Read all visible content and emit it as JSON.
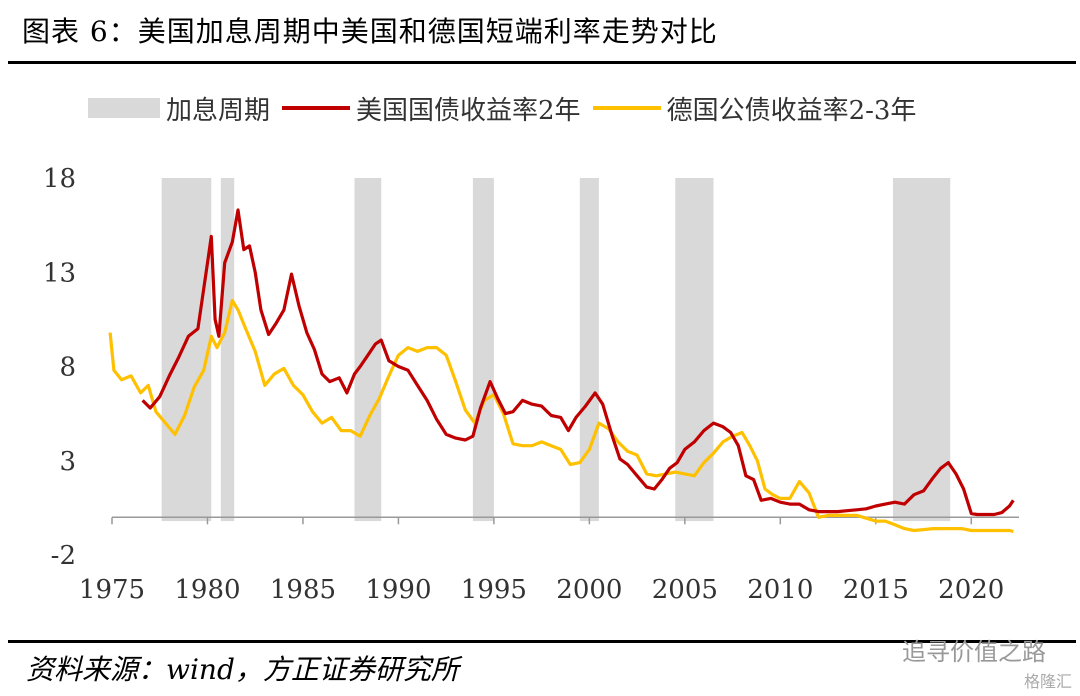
{
  "title": "图表 6：美国加息周期中美国和德国短端利率走势对比",
  "source": "资料来源：wind，方正证券研究所",
  "watermark": "追寻价值之路",
  "watermark2": "格隆汇",
  "colors": {
    "band": "#d9d9d9",
    "us": "#c00000",
    "de": "#ffc000",
    "axis": "#999999"
  },
  "chart_data": {
    "type": "line",
    "legend_position": "top",
    "ylim": [
      -2,
      18
    ],
    "yticks": [
      "18",
      "13",
      "8",
      "3",
      "-2"
    ],
    "ytick_values": [
      18,
      13,
      8,
      3,
      -2
    ],
    "xlim": [
      1975,
      2022.5
    ],
    "xticks": [
      "1975",
      "1980",
      "1985",
      "1990",
      "1995",
      "2000",
      "2005",
      "2010",
      "2015",
      "2020"
    ],
    "xtick_values": [
      1975,
      1980,
      1985,
      1990,
      1995,
      2000,
      2005,
      2010,
      2015,
      2020
    ],
    "bands_name": "加息周期",
    "bands": [
      [
        1977.6,
        1980.2
      ],
      [
        1980.7,
        1981.4
      ],
      [
        1987.7,
        1989.1
      ],
      [
        1993.9,
        1995.0
      ],
      [
        1999.5,
        2000.5
      ],
      [
        2004.5,
        2006.5
      ],
      [
        2015.9,
        2018.9
      ]
    ],
    "series": [
      {
        "name": "美国国债收益率2年",
        "x": [
          1976.6,
          1977.0,
          1977.5,
          1978.0,
          1978.5,
          1979.0,
          1979.5,
          1980.0,
          1980.2,
          1980.4,
          1980.6,
          1980.9,
          1981.3,
          1981.6,
          1981.9,
          1982.2,
          1982.5,
          1982.8,
          1983.2,
          1983.6,
          1984.0,
          1984.4,
          1984.8,
          1985.2,
          1985.6,
          1986.0,
          1986.4,
          1986.9,
          1987.3,
          1987.7,
          1988.0,
          1988.4,
          1988.8,
          1989.1,
          1989.5,
          1990.0,
          1990.5,
          1991.0,
          1991.5,
          1992.0,
          1992.5,
          1993.0,
          1993.5,
          1993.9,
          1994.3,
          1994.8,
          1995.2,
          1995.6,
          1996.0,
          1996.5,
          1997.0,
          1997.5,
          1998.0,
          1998.5,
          1998.9,
          1999.3,
          1999.8,
          2000.3,
          2000.7,
          2001.2,
          2001.6,
          2002.0,
          2002.5,
          2003.0,
          2003.4,
          2003.8,
          2004.2,
          2004.6,
          2005.0,
          2005.5,
          2006.0,
          2006.5,
          2007.0,
          2007.4,
          2007.8,
          2008.2,
          2008.6,
          2009.0,
          2009.5,
          2010.0,
          2010.5,
          2011.0,
          2011.5,
          2012.0,
          2012.5,
          2013.0,
          2013.5,
          2014.0,
          2014.5,
          2015.0,
          2015.5,
          2016.0,
          2016.5,
          2017.0,
          2017.5,
          2018.0,
          2018.4,
          2018.8,
          2019.2,
          2019.6,
          2020.0,
          2020.3,
          2020.7,
          2021.2,
          2021.6,
          2022.0,
          2022.2
        ],
        "values": [
          6.2,
          5.8,
          6.4,
          7.5,
          8.5,
          9.6,
          10.0,
          13.5,
          14.9,
          10.5,
          9.6,
          13.5,
          14.6,
          16.3,
          14.2,
          14.4,
          13.0,
          11.0,
          9.7,
          10.3,
          11.0,
          12.9,
          11.2,
          9.8,
          8.9,
          7.6,
          7.2,
          7.4,
          6.6,
          7.6,
          8.0,
          8.6,
          9.2,
          9.4,
          8.3,
          8.0,
          7.8,
          7.0,
          6.2,
          5.2,
          4.4,
          4.2,
          4.1,
          4.3,
          5.8,
          7.2,
          6.3,
          5.5,
          5.6,
          6.2,
          6.0,
          5.9,
          5.4,
          5.3,
          4.6,
          5.3,
          5.9,
          6.6,
          6.0,
          4.3,
          3.1,
          2.8,
          2.2,
          1.6,
          1.5,
          2.0,
          2.6,
          2.9,
          3.6,
          4.0,
          4.6,
          5.0,
          4.8,
          4.5,
          3.8,
          2.2,
          2.0,
          0.9,
          1.0,
          0.8,
          0.7,
          0.7,
          0.4,
          0.3,
          0.3,
          0.3,
          0.35,
          0.4,
          0.45,
          0.6,
          0.7,
          0.8,
          0.7,
          1.2,
          1.4,
          2.1,
          2.6,
          2.9,
          2.3,
          1.5,
          0.2,
          0.15,
          0.15,
          0.15,
          0.25,
          0.6,
          0.9
        ]
      },
      {
        "name": "德国公债收益率2-3年",
        "x": [
          1974.9,
          1975.1,
          1975.5,
          1976.0,
          1976.5,
          1976.9,
          1977.3,
          1977.8,
          1978.3,
          1978.8,
          1979.3,
          1979.8,
          1980.2,
          1980.5,
          1980.9,
          1981.3,
          1981.6,
          1982.0,
          1982.5,
          1983.0,
          1983.5,
          1984.0,
          1984.5,
          1985.0,
          1985.5,
          1986.0,
          1986.5,
          1987.0,
          1987.5,
          1988.0,
          1988.5,
          1989.0,
          1989.5,
          1990.0,
          1990.5,
          1991.0,
          1991.5,
          1992.0,
          1992.5,
          1993.0,
          1993.5,
          1994.0,
          1994.5,
          1995.0,
          1995.5,
          1996.0,
          1996.5,
          1997.0,
          1997.5,
          1998.0,
          1998.5,
          1999.0,
          1999.5,
          2000.0,
          2000.5,
          2001.0,
          2001.5,
          2002.0,
          2002.5,
          2003.0,
          2003.5,
          2004.0,
          2004.5,
          2005.0,
          2005.5,
          2006.0,
          2006.5,
          2007.0,
          2007.5,
          2008.0,
          2008.4,
          2008.8,
          2009.2,
          2009.6,
          2010.0,
          2010.5,
          2011.0,
          2011.5,
          2012.0,
          2012.5,
          2013.0,
          2013.5,
          2014.0,
          2014.5,
          2015.0,
          2015.5,
          2016.0,
          2016.5,
          2017.0,
          2017.5,
          2018.0,
          2018.5,
          2019.0,
          2019.5,
          2020.0,
          2020.5,
          2021.0,
          2021.5,
          2022.0,
          2022.2
        ],
        "values": [
          9.8,
          7.8,
          7.3,
          7.5,
          6.6,
          7.0,
          5.6,
          5.0,
          4.4,
          5.4,
          6.9,
          7.8,
          9.6,
          9.0,
          9.8,
          11.5,
          11.0,
          10.0,
          8.8,
          7.0,
          7.6,
          7.9,
          7.0,
          6.5,
          5.6,
          5.0,
          5.3,
          4.6,
          4.6,
          4.3,
          5.4,
          6.3,
          7.5,
          8.6,
          9.0,
          8.8,
          9.0,
          9.0,
          8.6,
          7.2,
          5.7,
          5.0,
          6.2,
          6.5,
          5.5,
          3.9,
          3.8,
          3.8,
          4.0,
          3.8,
          3.6,
          2.8,
          2.9,
          3.6,
          5.0,
          4.7,
          4.0,
          3.5,
          3.3,
          2.3,
          2.2,
          2.3,
          2.4,
          2.3,
          2.2,
          2.9,
          3.4,
          4.0,
          4.3,
          4.5,
          3.8,
          3.0,
          1.5,
          1.2,
          1.0,
          1.0,
          1.9,
          1.3,
          0.0,
          0.1,
          0.1,
          0.1,
          0.1,
          -0.05,
          -0.2,
          -0.2,
          -0.4,
          -0.6,
          -0.7,
          -0.65,
          -0.6,
          -0.6,
          -0.6,
          -0.6,
          -0.7,
          -0.7,
          -0.7,
          -0.7,
          -0.7,
          -0.75
        ]
      }
    ]
  }
}
